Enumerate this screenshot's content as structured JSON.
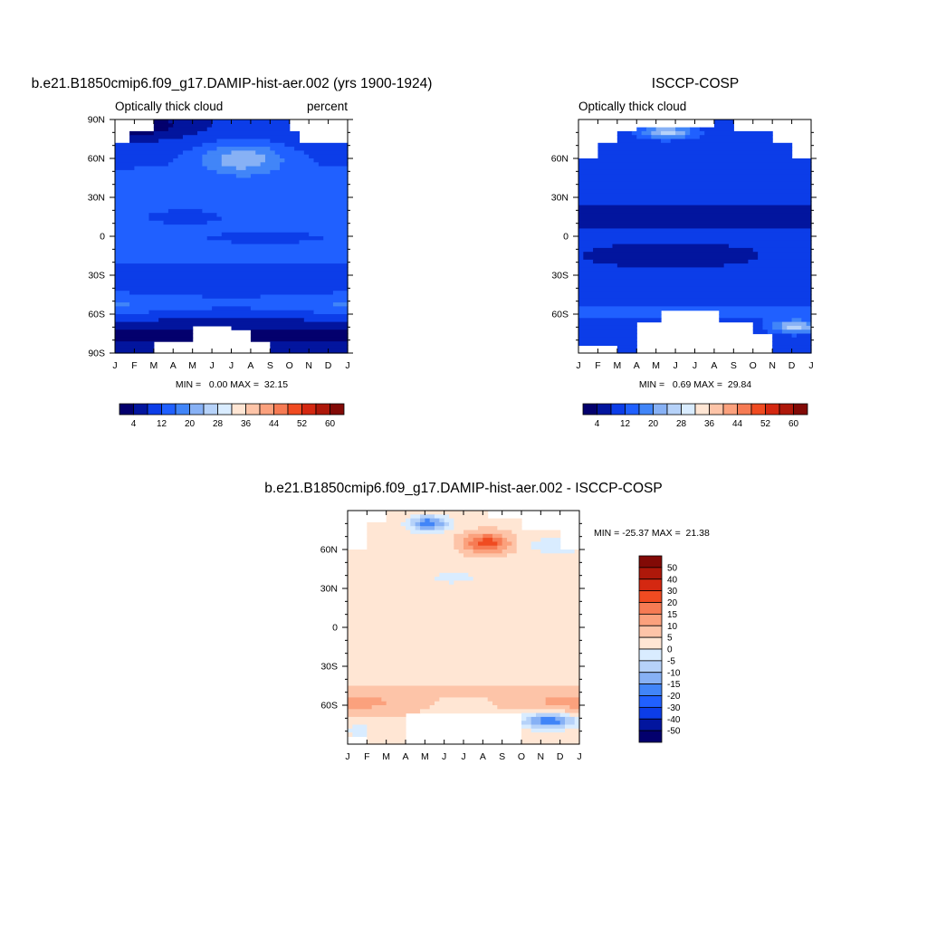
{
  "chart_data": [
    {
      "type": "heatmap",
      "panel": "model",
      "title": "b.e21.B1850cmip6.f09_g17.DAMIP-hist-aer.002 (yrs 1900-1924)",
      "left_label": "Optically thick cloud",
      "right_label": "percent",
      "stats": "MIN =   0.00 MAX =  32.15",
      "x_ticks": [
        "J",
        "F",
        "M",
        "A",
        "M",
        "J",
        "J",
        "A",
        "S",
        "O",
        "N",
        "D",
        "J"
      ],
      "y_ticks": [
        "90N",
        "60N",
        "30N",
        "0",
        "30S",
        "60S",
        "90S"
      ],
      "y_tick_lats": [
        90,
        60,
        30,
        0,
        -30,
        -60,
        -90
      ],
      "colorbar_labels": [
        "4",
        "12",
        "20",
        "28",
        "36",
        "44",
        "52",
        "60"
      ]
    },
    {
      "type": "heatmap",
      "panel": "obs",
      "title": "ISCCP-COSP",
      "left_label": "Optically thick cloud",
      "stats": "MIN =   0.69 MAX =  29.84",
      "x_ticks": [
        "J",
        "F",
        "M",
        "A",
        "M",
        "J",
        "J",
        "A",
        "S",
        "O",
        "N",
        "D",
        "J"
      ],
      "y_ticks": [
        "60N",
        "30N",
        "0",
        "30S",
        "60S"
      ],
      "y_tick_lats": [
        60,
        30,
        0,
        -30,
        -60
      ],
      "colorbar_labels": [
        "4",
        "12",
        "20",
        "28",
        "36",
        "44",
        "52",
        "60"
      ]
    },
    {
      "type": "heatmap",
      "panel": "difference",
      "title": "b.e21.B1850cmip6.f09_g17.DAMIP-hist-aer.002 - ISCCP-COSP",
      "stats": "MIN = -25.37 MAX =  21.38",
      "x_ticks": [
        "J",
        "F",
        "M",
        "A",
        "M",
        "J",
        "J",
        "A",
        "S",
        "O",
        "N",
        "D",
        "J"
      ],
      "y_ticks": [
        "60N",
        "30N",
        "0",
        "30S",
        "60S"
      ],
      "y_tick_lats": [
        60,
        30,
        0,
        -30,
        -60
      ],
      "colorbar_labels": [
        "50",
        "40",
        "30",
        "20",
        "15",
        "10",
        "5",
        "0",
        "-5",
        "-10",
        "-15",
        "-20",
        "-30",
        "-40",
        "-50"
      ]
    }
  ],
  "palettes": {
    "seq": [
      "#03006d",
      "#02159e",
      "#0c3de8",
      "#2060ff",
      "#4185f8",
      "#87b1f5",
      "#b6d2f9",
      "#d9ecff",
      "#ffe6d4",
      "#fdc4a8",
      "#fba17d",
      "#f67b54",
      "#f04b21",
      "#d42811",
      "#ae180a",
      "#820a06"
    ],
    "diff": [
      "#820a06",
      "#ae180a",
      "#d42811",
      "#f04b21",
      "#f67b54",
      "#fba17d",
      "#fdc4a8",
      "#ffe6d4",
      "#d9ecff",
      "#b6d2f9",
      "#87b1f5",
      "#4185f8",
      "#2060ff",
      "#0c3de8",
      "#02159e",
      "#03006d"
    ]
  }
}
